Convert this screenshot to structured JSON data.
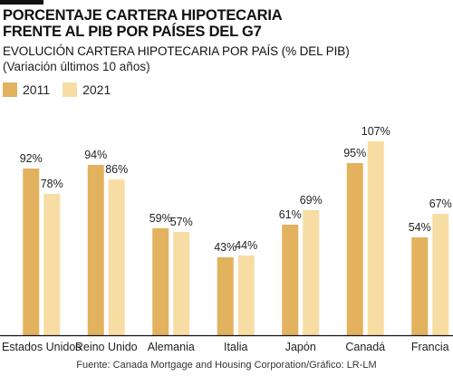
{
  "header": {
    "title_line1": "PORCENTAJE CARTERA HIPOTECARIA",
    "title_line2": "FRENTE AL PIB POR PAÍSES DEL G7",
    "subtitle": "EVOLUCIÓN CARTERA HIPOTECARIA POR PAÍS (% DEL PIB)",
    "note": "(Variación últimos 10 años)"
  },
  "source": "Fuente: Canada Mortgage and Housing Corporation/Gráfico: LR-LM",
  "colors": {
    "series_2011": "#E2B25E",
    "series_2021": "#F7DDA4",
    "axis": "#111111",
    "topbar": "#111111"
  },
  "chart_data": {
    "type": "bar",
    "title": "PORCENTAJE CARTERA HIPOTECARIA FRENTE AL PIB POR PAÍSES DEL G7",
    "subtitle": "EVOLUCIÓN CARTERA HIPOTECARIA POR PAÍS (% DEL PIB)",
    "categories": [
      "Estados Unidos",
      "Reino Unido",
      "Alemania",
      "Italia",
      "Japón",
      "Canadá",
      "Francia"
    ],
    "series": [
      {
        "name": "2011",
        "values": [
          92,
          94,
          59,
          43,
          61,
          95,
          54
        ],
        "labels": [
          "92%",
          "94%",
          "59%",
          "43%",
          "61%",
          "95%",
          "54%"
        ]
      },
      {
        "name": "2021",
        "values": [
          78,
          86,
          57,
          44,
          69,
          107,
          67
        ],
        "labels": [
          "78%",
          "86%",
          "57%",
          "44%",
          "69%",
          "107%",
          "67%"
        ]
      }
    ],
    "xlabel": "",
    "ylabel": "",
    "ylim": [
      0,
      120
    ],
    "grid": false,
    "legend_position": "top-left"
  }
}
